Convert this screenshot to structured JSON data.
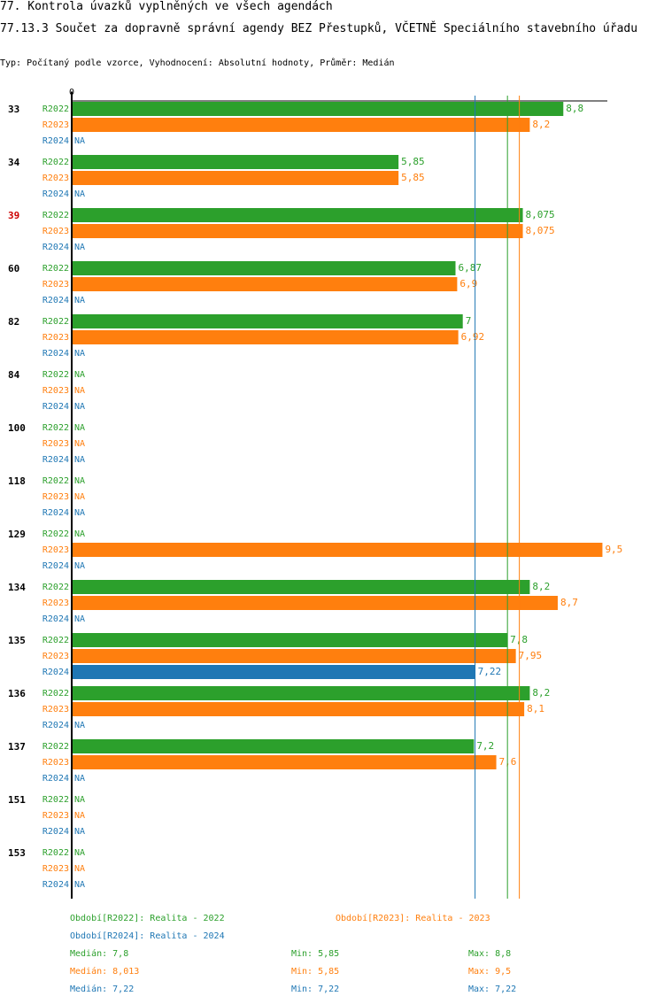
{
  "title": "77. Kontrola úvazků vyplněných ve všech agendách",
  "subtitle": "77.13.3 Součet za dopravně správní agendy BEZ Přestupků, VČETNĚ Speciálního stavebního úřadu",
  "info": "Typ: Počítaný podle vzorce, Vyhodnocení: Absolutní hodnoty, Průměr: Medián",
  "chart_data": {
    "type": "bar",
    "orientation": "horizontal",
    "axis_zero_label": "0",
    "xlim": [
      0,
      9.6
    ],
    "na_label": "NA",
    "series": [
      {
        "name": "R2022",
        "color": "#2ca02c"
      },
      {
        "name": "R2023",
        "color": "#ff7f0e"
      },
      {
        "name": "R2024",
        "color": "#1f77b4"
      }
    ],
    "groups": [
      {
        "label": "33",
        "highlight": false,
        "values": [
          8.8,
          8.2,
          null
        ],
        "labels": [
          "8,8",
          "8,2",
          "NA"
        ]
      },
      {
        "label": "34",
        "highlight": false,
        "values": [
          5.85,
          5.85,
          null
        ],
        "labels": [
          "5,85",
          "5,85",
          "NA"
        ]
      },
      {
        "label": "39",
        "highlight": true,
        "values": [
          8.075,
          8.075,
          null
        ],
        "labels": [
          "8,075",
          "8,075",
          "NA"
        ]
      },
      {
        "label": "60",
        "highlight": false,
        "values": [
          6.87,
          6.9,
          null
        ],
        "labels": [
          "6,87",
          "6,9",
          "NA"
        ]
      },
      {
        "label": "82",
        "highlight": false,
        "values": [
          7,
          6.92,
          null
        ],
        "labels": [
          "7",
          "6,92",
          "NA"
        ]
      },
      {
        "label": "84",
        "highlight": false,
        "values": [
          null,
          null,
          null
        ],
        "labels": [
          "NA",
          "NA",
          "NA"
        ]
      },
      {
        "label": "100",
        "highlight": false,
        "values": [
          null,
          null,
          null
        ],
        "labels": [
          "NA",
          "NA",
          "NA"
        ]
      },
      {
        "label": "118",
        "highlight": false,
        "values": [
          null,
          null,
          null
        ],
        "labels": [
          "NA",
          "NA",
          "NA"
        ]
      },
      {
        "label": "129",
        "highlight": false,
        "values": [
          null,
          9.5,
          null
        ],
        "labels": [
          "NA",
          "9,5",
          "NA"
        ]
      },
      {
        "label": "134",
        "highlight": false,
        "values": [
          8.2,
          8.7,
          null
        ],
        "labels": [
          "8,2",
          "8,7",
          "NA"
        ]
      },
      {
        "label": "135",
        "highlight": false,
        "values": [
          7.8,
          7.95,
          7.22
        ],
        "labels": [
          "7,8",
          "7,95",
          "7,22"
        ]
      },
      {
        "label": "136",
        "highlight": false,
        "values": [
          8.2,
          8.1,
          null
        ],
        "labels": [
          "8,2",
          "8,1",
          "NA"
        ]
      },
      {
        "label": "137",
        "highlight": false,
        "values": [
          7.2,
          7.6,
          null
        ],
        "labels": [
          "7,2",
          "7,6",
          "NA"
        ]
      },
      {
        "label": "151",
        "highlight": false,
        "values": [
          null,
          null,
          null
        ],
        "labels": [
          "NA",
          "NA",
          "NA"
        ]
      },
      {
        "label": "153",
        "highlight": false,
        "values": [
          null,
          null,
          null
        ],
        "labels": [
          "NA",
          "NA",
          "NA"
        ]
      }
    ],
    "median_lines": [
      {
        "series": "R2022",
        "value": 7.8
      },
      {
        "series": "R2023",
        "value": 8.013
      },
      {
        "series": "R2024",
        "value": 7.22
      }
    ],
    "legend": [
      {
        "series": "R2022",
        "text": "Období[R2022]: Realita - 2022"
      },
      {
        "series": "R2023",
        "text": "Období[R2023]: Realita - 2023"
      },
      {
        "series": "R2024",
        "text": "Období[R2024]: Realita - 2024"
      }
    ],
    "stats": [
      {
        "series": "R2022",
        "median": "Medián: 7,8",
        "min": "Min: 5,85",
        "max": "Max: 8,8"
      },
      {
        "series": "R2023",
        "median": "Medián: 8,013",
        "min": "Min: 5,85",
        "max": "Max: 9,5"
      },
      {
        "series": "R2024",
        "median": "Medián: 7,22",
        "min": "Min: 7,22",
        "max": "Max: 7,22"
      }
    ]
  }
}
